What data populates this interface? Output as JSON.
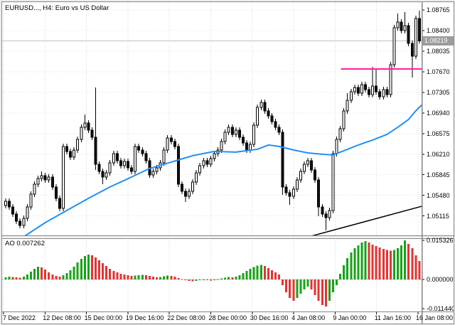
{
  "colors": {
    "ma_line": "#1E90FF",
    "resistance_line": "#FF1FA0",
    "trend_line": "#000000",
    "ao_up": "#17a317",
    "ao_down": "#e63232",
    "candle_bull": "#ffffff",
    "candle_bear": "#111111",
    "candle_outline": "#000000",
    "current_price_line": "#c0c0c0",
    "grid": "#d4d4d4",
    "frame": "#848484"
  },
  "chart_data": {
    "type": "candlestick",
    "title": "EURUSD..., H4:  Euro vs US Dollar",
    "symbol": "EURUSD",
    "timeframe": "H4",
    "current_price": "1.08219",
    "ao_label": "AO 0.007262",
    "indicator": {
      "name": "AO",
      "value": "0.007262"
    },
    "price_axis_labels": [
      "1.08765",
      "1.08400",
      "1.08035",
      "1.07670",
      "1.07305",
      "1.06940",
      "1.06575",
      "1.06210",
      "1.05845",
      "1.05480",
      "1.05115"
    ],
    "ao_axis_labels": [
      "0.015326",
      "0.000000",
      "-0.011440"
    ],
    "time_axis_labels": [
      "7 Dec 2022",
      "12 Dec 08:00",
      "15 Dec 00:00",
      "19 Dec 16:00",
      "22 Dec 08:00",
      "28 Dec 00:00",
      "30 Dec 16:00",
      "4 Jan 08:00",
      "9 Jan 00:00",
      "11 Jan 16:00",
      "16 Jan 08:00"
    ],
    "open_first": 1.053,
    "candles": [
      [
        1.05377,
        0,
        0
      ],
      [
        1.05276,
        0,
        0
      ],
      [
        1.0515,
        0,
        0
      ],
      [
        1.05024,
        0,
        0
      ],
      [
        1.04948,
        0,
        1.04897
      ],
      [
        1.05074,
        0,
        0
      ],
      [
        1.05276,
        0,
        0
      ],
      [
        1.05503,
        0,
        0
      ],
      [
        1.05679,
        0,
        0
      ],
      [
        1.0578,
        0,
        0
      ],
      [
        1.0583,
        1.05906,
        0
      ],
      [
        1.05755,
        0,
        0
      ],
      [
        1.05805,
        0,
        0
      ],
      [
        1.05629,
        0,
        0
      ],
      [
        1.05427,
        0,
        0
      ],
      [
        1.05251,
        0,
        0
      ],
      [
        1.06347,
        0,
        0
      ],
      [
        1.06259,
        0,
        0
      ],
      [
        1.06158,
        0,
        0
      ],
      [
        1.06284,
        0,
        0
      ],
      [
        1.06473,
        0,
        0
      ],
      [
        1.06687,
        0,
        0
      ],
      [
        1.06763,
        1.06913,
        0
      ],
      [
        1.06637,
        0,
        0
      ],
      [
        1.06511,
        0,
        0
      ],
      [
        1.06032,
        1.07393,
        1.05931
      ],
      [
        1.05906,
        0,
        0
      ],
      [
        1.05805,
        0,
        1.05679
      ],
      [
        1.05881,
        0,
        0
      ],
      [
        1.06057,
        0,
        0
      ],
      [
        1.06221,
        0,
        0
      ],
      [
        1.06095,
        0,
        0
      ],
      [
        1.06007,
        0,
        0
      ],
      [
        1.06082,
        0,
        0
      ],
      [
        1.05969,
        0,
        0
      ],
      [
        1.05906,
        0,
        0
      ],
      [
        1.06347,
        0,
        0
      ],
      [
        1.06284,
        0,
        0
      ],
      [
        1.06221,
        0,
        0
      ],
      [
        1.06095,
        0,
        0
      ],
      [
        1.05843,
        0,
        0
      ],
      [
        1.05906,
        0,
        0
      ],
      [
        1.05969,
        0,
        0
      ],
      [
        1.06057,
        0,
        0
      ],
      [
        1.06284,
        0,
        0
      ],
      [
        1.06498,
        0,
        0
      ],
      [
        1.06435,
        0,
        0
      ],
      [
        1.06347,
        0,
        0
      ],
      [
        1.05679,
        0,
        0
      ],
      [
        1.05553,
        0,
        0
      ],
      [
        1.05465,
        0,
        1.05364
      ],
      [
        1.05553,
        0,
        0
      ],
      [
        1.05717,
        0,
        0
      ],
      [
        1.05881,
        0,
        0
      ],
      [
        1.06007,
        0,
        0
      ],
      [
        1.06095,
        0,
        0
      ],
      [
        1.06032,
        0,
        0
      ],
      [
        1.06133,
        0,
        0
      ],
      [
        1.06221,
        0,
        0
      ],
      [
        1.06284,
        0,
        0
      ],
      [
        1.06435,
        0,
        0
      ],
      [
        1.06599,
        0,
        0
      ],
      [
        1.06687,
        0,
        0
      ],
      [
        1.06561,
        0,
        0
      ],
      [
        1.06637,
        0,
        0
      ],
      [
        1.06511,
        0,
        0
      ],
      [
        1.0641,
        0,
        0
      ],
      [
        1.06284,
        0,
        0
      ],
      [
        1.06385,
        0,
        0
      ],
      [
        1.06725,
        0,
        0
      ],
      [
        1.0704,
        0,
        0
      ],
      [
        1.07128,
        1.07179,
        0
      ],
      [
        1.06977,
        0,
        0
      ],
      [
        1.06889,
        0,
        0
      ],
      [
        1.06788,
        0,
        0
      ],
      [
        1.06687,
        0,
        0
      ],
      [
        1.06599,
        0,
        0
      ],
      [
        1.05629,
        0,
        1.0549
      ],
      [
        1.05528,
        0,
        0
      ],
      [
        1.05465,
        0,
        1.05314
      ],
      [
        1.05591,
        0,
        0
      ],
      [
        1.05755,
        0,
        0
      ],
      [
        1.05906,
        0,
        0
      ],
      [
        1.06032,
        0,
        0
      ],
      [
        1.06095,
        0,
        0
      ],
      [
        1.05931,
        0,
        0
      ],
      [
        1.05755,
        0,
        0
      ],
      [
        1.05276,
        0,
        1.05112
      ],
      [
        1.0515,
        0,
        0
      ],
      [
        1.05087,
        0,
        1.0486
      ],
      [
        1.05213,
        0,
        0
      ],
      [
        1.06221,
        0,
        0
      ],
      [
        1.06473,
        0,
        0
      ],
      [
        1.06662,
        0,
        0
      ],
      [
        1.06977,
        0,
        0
      ],
      [
        1.07166,
        1.07292,
        0
      ],
      [
        1.07317,
        0,
        0
      ],
      [
        1.07393,
        0,
        0
      ],
      [
        1.07292,
        0,
        0
      ],
      [
        1.07443,
        0,
        0
      ],
      [
        1.07355,
        0,
        0
      ],
      [
        1.07267,
        0,
        0
      ],
      [
        1.07418,
        1.07758,
        0
      ],
      [
        1.07317,
        1.07733,
        0
      ],
      [
        1.07229,
        0,
        0
      ],
      [
        1.07355,
        0,
        0
      ],
      [
        1.07267,
        0,
        0
      ],
      [
        1.07796,
        0,
        0
      ],
      [
        1.08451,
        0,
        0
      ],
      [
        1.08552,
        1.08703,
        0
      ],
      [
        1.08401,
        0,
        0
      ],
      [
        1.08489,
        1.08728,
        0
      ],
      [
        1.08174,
        0,
        0
      ],
      [
        1.07947,
        0,
        1.07569
      ],
      [
        1.08615,
        0,
        0
      ],
      [
        1.08219,
        1.08754,
        0
      ]
    ],
    "ao_values": [
      0.0008,
      0.0011,
      0.001,
      0.0008,
      0.0007,
      0.0011,
      0.002,
      0.0031,
      0.0042,
      0.005,
      0.0047,
      0.0039,
      0.0028,
      0.002,
      0.0014,
      0.0011,
      0.0017,
      0.0025,
      0.0036,
      0.005,
      0.0067,
      0.0081,
      0.0092,
      0.0098,
      0.0095,
      0.0086,
      0.0075,
      0.0064,
      0.0053,
      0.0042,
      0.0033,
      0.0028,
      0.0022,
      0.002,
      0.0017,
      0.0014,
      0.0015,
      0.0017,
      0.0018,
      0.0017,
      0.0014,
      0.0011,
      0.0008,
      0.001,
      0.0013,
      0.0015,
      0.0014,
      0.0011,
      0.0006,
      0.0001,
      -0.0003,
      -0.0006,
      -0.0007,
      -0.0006,
      -0.0003,
      -0.0001,
      -0.0003,
      -0.0004,
      -0.0003,
      0.0001,
      0.0004,
      0.0007,
      0.001,
      0.0008,
      0.0011,
      0.0017,
      0.0025,
      0.0033,
      0.0042,
      0.0049,
      0.0054,
      0.0057,
      0.0053,
      0.0045,
      0.0036,
      0.0028,
      0.002,
      -0.0022,
      -0.005,
      -0.0073,
      -0.0084,
      -0.0073,
      -0.0056,
      -0.0039,
      -0.0028,
      -0.0039,
      -0.0061,
      -0.0084,
      -0.01,
      -0.0106,
      -0.0084,
      -0.005,
      -0.0022,
      0.0022,
      0.0056,
      0.0084,
      0.0106,
      0.0123,
      0.0134,
      0.0145,
      0.0151,
      0.0145,
      0.0137,
      0.0131,
      0.0126,
      0.012,
      0.0116,
      0.0113,
      0.0116,
      0.0123,
      0.0134,
      0.0153,
      0.014,
      0.0123,
      0.0095,
      0.0073
    ],
    "ma_points": [
      [
        5,
        1.04747
      ],
      [
        11,
        1.04998
      ],
      [
        17,
        1.05213
      ],
      [
        23,
        1.05427
      ],
      [
        29,
        1.05629
      ],
      [
        35,
        1.05805
      ],
      [
        40,
        1.05956
      ],
      [
        46,
        1.0607
      ],
      [
        52,
        1.06183
      ],
      [
        58,
        1.06259
      ],
      [
        64,
        1.06246
      ],
      [
        70,
        1.06297
      ],
      [
        73,
        1.06372
      ],
      [
        76,
        1.06347
      ],
      [
        80,
        1.06284
      ],
      [
        84,
        1.06233
      ],
      [
        88,
        1.06208
      ],
      [
        91,
        1.06196
      ],
      [
        94,
        1.06271
      ],
      [
        98,
        1.06372
      ],
      [
        102,
        1.0646
      ],
      [
        106,
        1.06561
      ],
      [
        109,
        1.06687
      ],
      [
        112,
        1.06826
      ],
      [
        114,
        1.06977
      ],
      [
        116,
        1.07103
      ]
    ],
    "resistance_line": {
      "price": 1.0772,
      "from_bar": 93.2,
      "to_bar": 117
    },
    "trend_line": {
      "from_bar": 85,
      "price1": 1.04759,
      "to_bar": 117,
      "price2": 1.0531
    }
  }
}
